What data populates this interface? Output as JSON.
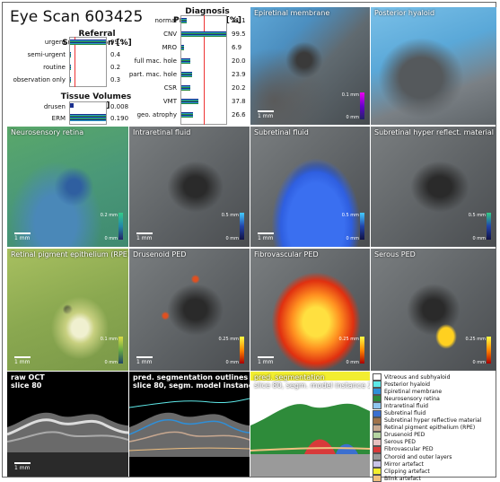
{
  "title": "Eye Scan 603425",
  "referral": {
    "heading": "Referral Suggestion [%]",
    "items": [
      {
        "label": "urgent",
        "value": "99.1",
        "frac": 0.991
      },
      {
        "label": "semi-urgent",
        "value": "0.4",
        "frac": 0.004
      },
      {
        "label": "routine",
        "value": "0.2",
        "frac": 0.002
      },
      {
        "label": "observation only",
        "value": "0.3",
        "frac": 0.003
      }
    ]
  },
  "tissue": {
    "heading": "Tissue Volumes [mm³]",
    "items": [
      {
        "label": "drusen",
        "value": "0.008"
      },
      {
        "label": "ERM",
        "value": "0.190"
      }
    ]
  },
  "diagnosis": {
    "heading": "Diagnosis Probability [%]",
    "items": [
      {
        "label": "normal",
        "value": "11.1",
        "frac": 0.111
      },
      {
        "label": "CNV",
        "value": "99.5",
        "frac": 0.995
      },
      {
        "label": "MRO",
        "value": "6.9",
        "frac": 0.069
      },
      {
        "label": "full mac. hole",
        "value": "20.0",
        "frac": 0.2
      },
      {
        "label": "part. mac. hole",
        "value": "23.9",
        "frac": 0.239
      },
      {
        "label": "CSR",
        "value": "20.2",
        "frac": 0.202
      },
      {
        "label": "VMT",
        "value": "37.8",
        "frac": 0.378
      },
      {
        "label": "geo. atrophy",
        "value": "26.6",
        "frac": 0.266
      }
    ]
  },
  "tiles": {
    "epiretinal": "Epiretinal membrane",
    "posterior": "Posterior hyaloid",
    "neurosensory": "Neurosensory retina",
    "intraretinal": "Intraretinal fluid",
    "subretinal": "Subretinal fluid",
    "hyperreflect": "Subretinal hyper reflect. material",
    "rpe": "Retinal pigment epithelium (RPE)",
    "drusenoid": "Drusenoid PED",
    "fibrovascular": "Fibrovascular PED",
    "serous": "Serous PED"
  },
  "scale": "1 mm",
  "colorbar": {
    "epi_top": "0.1 mm",
    "zero": "0 mm",
    "neuro_top": "0.2 mm",
    "intra_top": "0.5 mm",
    "sub_top": "0.5 mm",
    "hyper_top": "0.5 mm",
    "rpe_top": "0.1 mm",
    "dru_top": "0.25 mm",
    "fib_top": "0.25 mm",
    "ser_top": "0.25 mm"
  },
  "bottom": {
    "raw_line1": "raw OCT",
    "raw_line2": "slice 80",
    "pred_line1": "pred. segmentation outlines",
    "pred_line2": "slice 80, segm. model instance2",
    "seg_line1": "pred. segmentation",
    "seg_line2": "slice 80, segm. model instance 2"
  },
  "legend": [
    {
      "label": "Vitreous and subhyaloid",
      "color": "#ffffff"
    },
    {
      "label": "Posterior hyaloid",
      "color": "#5ee8e8"
    },
    {
      "label": "Epiretinal membrane",
      "color": "#2f8fd8"
    },
    {
      "label": "Neurosensory retina",
      "color": "#2e8b3a"
    },
    {
      "label": "Intraretinal fluid",
      "color": "#8fc6f0"
    },
    {
      "label": "Subretinal fluid",
      "color": "#3b6fd0"
    },
    {
      "label": "Subretinal hyper reflective material",
      "color": "#a0724a"
    },
    {
      "label": "Retinal pigment epithelium (RPE)",
      "color": "#c8a890"
    },
    {
      "label": "Drusenoid PED",
      "color": "#b6d5a2"
    },
    {
      "label": "Serous PED",
      "color": "#e8c0c0"
    },
    {
      "label": "Fibrovascular PED",
      "color": "#d83a3a"
    },
    {
      "label": "Choroid and outer layers",
      "color": "#9a9a9a"
    },
    {
      "label": "Mirror artefact",
      "color": "#c9c4e8"
    },
    {
      "label": "Clipping artefact",
      "color": "#f2ee30"
    },
    {
      "label": "Blink artefact",
      "color": "#f0c080"
    }
  ]
}
